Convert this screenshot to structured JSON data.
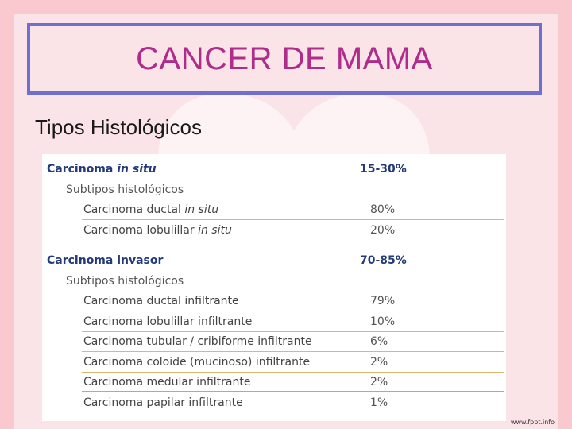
{
  "slide": {
    "title": "CANCER DE MAMA",
    "subtitle": "Tipos Histológicos",
    "watermark": "www.fppt.info"
  },
  "table": {
    "groups": [
      {
        "header_label": "Carcinoma ",
        "header_label_italic": "in situ",
        "header_value": "15-30%",
        "subhead": "Subtipos histológicos",
        "items": [
          {
            "label": "Carcinoma ductal ",
            "label_italic": "in situ",
            "value": "80%"
          },
          {
            "label": "Carcinoma lobulillar ",
            "label_italic": "in situ",
            "value": "20%"
          }
        ]
      },
      {
        "header_label": "Carcinoma invasor",
        "header_value": "70-85%",
        "subhead": "Subtipos histológicos",
        "items": [
          {
            "label": "Carcinoma ductal infiltrante",
            "value": "79%"
          },
          {
            "label": "Carcinoma lobulillar infiltrante",
            "value": "10%"
          },
          {
            "label": "Carcinoma tubular / cribiforme infiltrante",
            "value": "6%"
          },
          {
            "label": "Carcinoma coloide (mucinoso) infiltrante",
            "value": "2%"
          },
          {
            "label": "Carcinoma medular infiltrante",
            "value": "2%"
          },
          {
            "label": "Carcinoma papilar infiltrante",
            "value": "1%"
          }
        ]
      }
    ]
  },
  "colors": {
    "background": "#f9c9cf",
    "title_text": "#b02c8a",
    "title_border": "#6f6fd0",
    "header_text": "#223a7a",
    "row_divider": "#d9b870"
  },
  "icons": {
    "background_decoration": "heart-shape"
  }
}
